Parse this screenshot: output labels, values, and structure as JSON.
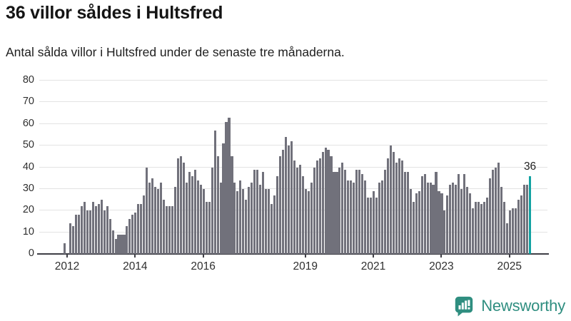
{
  "header": {
    "title": "36 villor såldes i Hultsfred",
    "subtitle": "Antal sålda villor i Hultsfred under de senaste tre månaderna."
  },
  "chart_data": {
    "type": "bar",
    "title": "36 villor såldes i Hultsfred",
    "subtitle": "Antal sålda villor i Hultsfred under de senaste tre månaderna.",
    "ylim": [
      0,
      80
    ],
    "yticks": [
      0,
      10,
      20,
      30,
      40,
      50,
      60,
      70,
      80
    ],
    "xtick_years": [
      2012,
      2014,
      2016,
      2019,
      2021,
      2023,
      2025
    ],
    "grid": true,
    "legend": "none",
    "start_month": "2011-12",
    "end_month": "2025-08",
    "values": [
      5,
      0,
      14,
      13,
      18,
      18,
      22,
      24,
      20,
      20,
      24,
      22,
      23,
      25,
      20,
      22,
      16,
      11,
      7,
      9,
      9,
      9,
      13,
      16,
      18,
      19,
      23,
      23,
      27,
      40,
      33,
      35,
      31,
      30,
      33,
      25,
      22,
      22,
      22,
      31,
      44,
      45,
      42,
      33,
      38,
      36,
      39,
      34,
      32,
      30,
      24,
      24,
      40,
      57,
      45,
      33,
      51,
      61,
      63,
      45,
      33,
      29,
      34,
      30,
      25,
      31,
      33,
      39,
      39,
      32,
      38,
      30,
      30,
      23,
      27,
      36,
      45,
      48,
      54,
      50,
      52,
      43,
      40,
      41,
      36,
      30,
      29,
      33,
      40,
      43,
      44,
      47,
      49,
      48,
      45,
      38,
      38,
      40,
      42,
      39,
      34,
      34,
      33,
      39,
      39,
      37,
      34,
      26,
      26,
      29,
      26,
      33,
      34,
      39,
      44,
      50,
      47,
      42,
      44,
      43,
      38,
      38,
      30,
      24,
      28,
      29,
      36,
      37,
      33,
      33,
      32,
      38,
      29,
      28,
      20,
      27,
      32,
      33,
      32,
      37,
      30,
      37,
      31,
      28,
      21,
      24,
      24,
      23,
      24,
      26,
      35,
      39,
      40,
      42,
      31,
      24,
      14,
      20,
      21,
      21,
      25,
      27,
      32,
      32,
      36
    ],
    "highlight_index": 164,
    "highlight_value": 36,
    "annotation_label": "36",
    "bar_color": "#71717b",
    "highlight_color": "#12a2a2"
  },
  "footer": {
    "brand": "Newsworthy",
    "brand_color": "#2f8e80",
    "logo_icon": "bar-chart-speech-bubble"
  },
  "colors": {
    "background": "#ffffff",
    "grid": "#e3e3e3",
    "axis": "#3f3f46",
    "text": "#2f2f2f",
    "accent": "#12a2a2"
  }
}
